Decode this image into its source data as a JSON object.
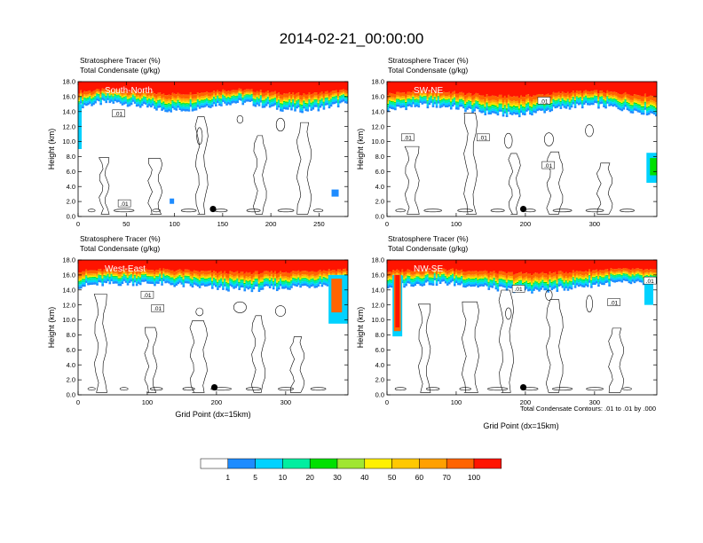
{
  "figure": {
    "title": "2014-02-21_00:00:00",
    "footnote": "Total Condensate Contours: .01 to .01 by .000"
  },
  "colors": {
    "bins": [
      "#ffffff",
      "#1e8cff",
      "#00d2ff",
      "#00eea0",
      "#00e000",
      "#a0e632",
      "#fff000",
      "#ffc800",
      "#ffa000",
      "#ff6400",
      "#ff1400"
    ],
    "contour": "#000000",
    "marker": "#000000"
  },
  "colorbar": {
    "labels": [
      "1",
      "5",
      "10",
      "20",
      "30",
      "40",
      "50",
      "60",
      "70",
      "100"
    ]
  },
  "chart_data": [
    {
      "type": "heatmap",
      "region_label": "South-North",
      "subtitle_line1": "Stratosphere Tracer   (%)",
      "subtitle_line2": "Total Condensate   (g/kg)",
      "ylabel": "Height (km)",
      "xlabel": "",
      "xlim": [
        0,
        280
      ],
      "ylim": [
        0,
        18
      ],
      "xticks": [
        "0",
        "50",
        "100",
        "150",
        "200",
        "250"
      ],
      "yticks": [
        "0.0",
        "2.0",
        "4.0",
        "6.0",
        "8.0",
        "10.0",
        "12.0",
        "14.0",
        "16.0",
        "18.0"
      ],
      "marker": {
        "x": 140,
        "y": 1.0
      },
      "contour_labels": [
        {
          "text": ".01",
          "x": 42,
          "y": 13.7
        },
        {
          "text": ".01",
          "x": 48,
          "y": 1.7
        }
      ]
    },
    {
      "type": "heatmap",
      "region_label": "SW-NE",
      "subtitle_line1": "Stratosphere Tracer   (%)",
      "subtitle_line2": "Total Condensate   (g/kg)",
      "ylabel": "Height (km)",
      "xlabel": "",
      "xlim": [
        0,
        390
      ],
      "ylim": [
        0,
        18
      ],
      "xticks": [
        "0",
        "100",
        "200",
        "300"
      ],
      "yticks": [
        "0.0",
        "2.0",
        "4.0",
        "6.0",
        "8.0",
        "10.0",
        "12.0",
        "14.0",
        "16.0",
        "18.0"
      ],
      "marker": {
        "x": 197,
        "y": 1.0
      },
      "contour_labels": [
        {
          "text": ".01",
          "x": 227,
          "y": 15.4
        },
        {
          "text": ".01",
          "x": 30,
          "y": 10.5
        },
        {
          "text": ".01",
          "x": 139,
          "y": 10.5
        },
        {
          "text": ".01",
          "x": 233,
          "y": 6.8
        }
      ]
    },
    {
      "type": "heatmap",
      "region_label": "West-East",
      "subtitle_line1": "Stratosphere Tracer   (%)",
      "subtitle_line2": "Total Condensate   (g/kg)",
      "ylabel": "Height (km)",
      "xlabel": "Grid Point (dx=15km)",
      "xlim": [
        0,
        390
      ],
      "ylim": [
        0,
        18
      ],
      "xticks": [
        "0",
        "100",
        "200",
        "300"
      ],
      "yticks": [
        "0.0",
        "2.0",
        "4.0",
        "6.0",
        "8.0",
        "10.0",
        "12.0",
        "14.0",
        "16.0",
        "18.0"
      ],
      "marker": {
        "x": 197,
        "y": 1.0
      },
      "contour_labels": [
        {
          "text": ".01",
          "x": 100,
          "y": 13.3
        },
        {
          "text": ".01",
          "x": 115,
          "y": 11.5
        }
      ]
    },
    {
      "type": "heatmap",
      "region_label": "NW-SE",
      "subtitle_line1": "Stratosphere Tracer   (%)",
      "subtitle_line2": "Total Condensate   (g/kg)",
      "ylabel": "Height (km)",
      "xlabel": "Grid Point (dx=15km)",
      "xlim": [
        0,
        390
      ],
      "ylim": [
        0,
        18
      ],
      "xticks": [
        "0",
        "100",
        "200",
        "300"
      ],
      "yticks": [
        "0.0",
        "2.0",
        "4.0",
        "6.0",
        "8.0",
        "10.0",
        "12.0",
        "14.0",
        "16.0",
        "18.0"
      ],
      "marker": {
        "x": 197,
        "y": 1.0
      },
      "contour_labels": [
        {
          "text": ".01",
          "x": 190,
          "y": 14.1
        },
        {
          "text": ".01",
          "x": 328,
          "y": 12.3
        },
        {
          "text": ".01",
          "x": 380,
          "y": 15.2
        }
      ]
    }
  ]
}
